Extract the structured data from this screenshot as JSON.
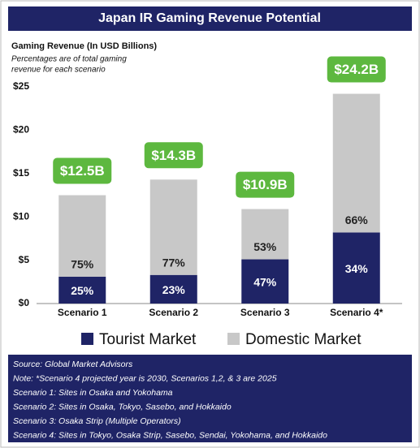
{
  "chart_data": {
    "type": "stacked_bar",
    "title": "Japan IR Gaming Revenue Potential",
    "y_label": "Gaming Revenue (In USD Billions)",
    "subtitle": [
      "Percentages are of total gaming",
      "revenue for each scenario"
    ],
    "categories": [
      "Scenario 1",
      "Scenario 2",
      "Scenario 3",
      "Scenario 4*"
    ],
    "series": [
      {
        "name": "Tourist Market",
        "color": "#1f2466",
        "values": [
          3.1,
          3.3,
          5.1,
          8.2
        ],
        "value_labels": [
          "25%",
          "23%",
          "47%",
          "34%"
        ],
        "label_color": "#ffffff"
      },
      {
        "name": "Domestic Market",
        "color": "#c8c8c8",
        "values": [
          9.4,
          11.0,
          5.8,
          16.0
        ],
        "value_labels": [
          "75%",
          "77%",
          "53%",
          "66%"
        ],
        "label_color": "#222222"
      }
    ],
    "totals": {
      "values": [
        12.5,
        14.3,
        10.9,
        24.2
      ],
      "value_labels": [
        "$12.5B",
        "$14.3B",
        "$10.9B",
        "$24.2B"
      ],
      "color": "#5db83f"
    },
    "ylim": [
      0,
      25
    ],
    "yticks": [
      {
        "value": 0,
        "label": "$0"
      },
      {
        "value": 5,
        "label": "$5"
      },
      {
        "value": 10,
        "label": "$10"
      },
      {
        "value": 15,
        "label": "$15"
      },
      {
        "value": 20,
        "label": "$20"
      },
      {
        "value": 25,
        "label": "$25"
      }
    ],
    "grid": false,
    "notes": [
      "Source: Global Market Advisors",
      "Note: *Scenario 4 projected year is 2030, Scenarios 1,2, & 3 are 2025",
      "Scenario 1: Sites in Osaka and Yokohama",
      "Scenario 2: Sites in Osaka, Tokyo, Sasebo, and Hokkaido",
      "Scenario 3: Osaka Strip (Multiple Operators)",
      "Scenario 4: Sites in Tokyo, Osaka Strip, Sasebo, Sendai, Yokohama, and Hokkaido"
    ]
  }
}
